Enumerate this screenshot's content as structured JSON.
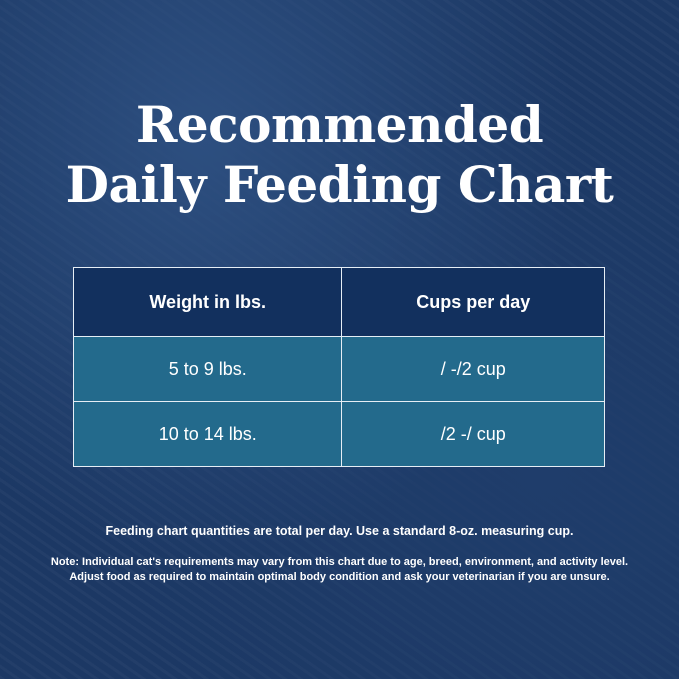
{
  "title_line1": "Recommended",
  "title_line2": "Daily Feeding Chart",
  "table": {
    "headers": [
      "Weight in lbs.",
      "Cups per day"
    ],
    "rows": [
      [
        "5 to 9 lbs.",
        "/ -/2 cup"
      ],
      [
        "10 to 14 lbs.",
        "/2 -/ cup"
      ]
    ]
  },
  "note1": "Feeding chart quantities are total per day. Use a standard 8-oz. measuring cup.",
  "note2_line1": "Note: Individual cat's requirements may vary from this chart due to age, breed, environment, and activity level.",
  "note2_line2": "Adjust food as required to maintain optimal body condition and ask your veterinarian if you are unsure."
}
